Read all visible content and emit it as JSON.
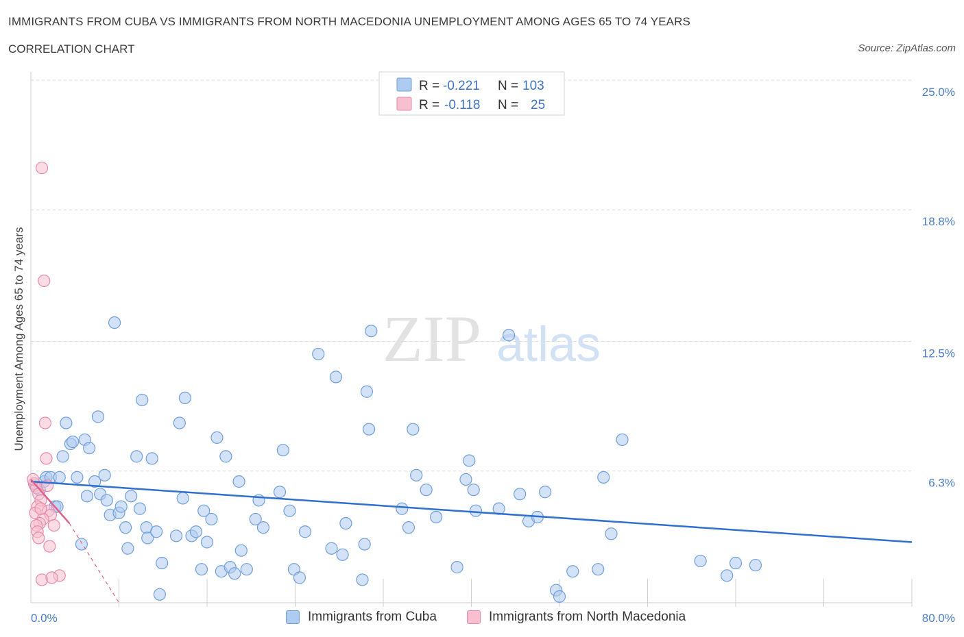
{
  "title": "IMMIGRANTS FROM CUBA VS IMMIGRANTS FROM NORTH MACEDONIA UNEMPLOYMENT AMONG AGES 65 TO 74 YEARS",
  "subtitle": "CORRELATION CHART",
  "source": "Source: ZipAtlas.com",
  "watermark": {
    "zip": "ZIP",
    "atlas": "atlas"
  },
  "colors": {
    "cuba_fill": "#aecbf0",
    "cuba_stroke": "#6f9fdc",
    "cuba_line": "#2f6fd0",
    "macedonia_fill": "#f7bfd0",
    "macedonia_stroke": "#e88aa8",
    "macedonia_line": "#e0608a",
    "accent_text": "#3f73c6",
    "grid": "#d9d9d9"
  },
  "legend": {
    "rows": [
      {
        "r_label": "R =",
        "r_value": "-0.221",
        "n_label": "N =",
        "n_value": "103"
      },
      {
        "r_label": "R =",
        "r_value": "-0.118",
        "n_label": "N =",
        "n_value": "25"
      }
    ]
  },
  "bottom_legend": {
    "cuba": "Immigrants from Cuba",
    "macedonia": "Immigrants from North Macedonia"
  },
  "chart_data": {
    "type": "scatter",
    "title": "IMMIGRANTS FROM CUBA VS IMMIGRANTS FROM NORTH MACEDONIA UNEMPLOYMENT AMONG AGES 65 TO 74 YEARS",
    "xlabel": "",
    "ylabel": "Unemployment Among Ages 65 to 74 years",
    "xlim": [
      0,
      80
    ],
    "ylim": [
      0,
      25
    ],
    "x_tick_labels": [
      "0.0%",
      "80.0%"
    ],
    "y_ticks": [
      6.3,
      12.5,
      18.8,
      25.0
    ],
    "y_tick_labels": [
      "6.3%",
      "12.5%",
      "18.8%",
      "25.0%"
    ],
    "legend_position": "top-center",
    "series": [
      {
        "name": "Immigrants from Cuba",
        "R": -0.221,
        "N": 103,
        "trend": {
          "x": [
            0,
            80
          ],
          "y": [
            5.8,
            2.9
          ],
          "style": "solid"
        },
        "points": [
          [
            0.4,
            5.6
          ],
          [
            0.8,
            5.4
          ],
          [
            1.2,
            5.8
          ],
          [
            1.4,
            6.0
          ],
          [
            1.8,
            6.0
          ],
          [
            2.2,
            4.6
          ],
          [
            2.4,
            4.6
          ],
          [
            2.6,
            6.0
          ],
          [
            2.9,
            7.0
          ],
          [
            3.2,
            8.6
          ],
          [
            3.6,
            7.6
          ],
          [
            3.8,
            7.7
          ],
          [
            4.2,
            6.0
          ],
          [
            4.6,
            2.8
          ],
          [
            4.9,
            7.8
          ],
          [
            5.1,
            5.1
          ],
          [
            5.3,
            7.4
          ],
          [
            5.8,
            5.8
          ],
          [
            6.1,
            8.9
          ],
          [
            6.3,
            5.2
          ],
          [
            6.7,
            6.1
          ],
          [
            6.9,
            4.9
          ],
          [
            7.2,
            4.2
          ],
          [
            7.6,
            13.4
          ],
          [
            8.0,
            4.3
          ],
          [
            8.2,
            4.6
          ],
          [
            8.6,
            3.6
          ],
          [
            8.8,
            2.6
          ],
          [
            9.1,
            5.1
          ],
          [
            9.6,
            7.0
          ],
          [
            9.9,
            4.5
          ],
          [
            10.1,
            9.7
          ],
          [
            10.5,
            3.6
          ],
          [
            10.6,
            3.1
          ],
          [
            11.0,
            6.9
          ],
          [
            11.4,
            3.4
          ],
          [
            11.7,
            0.4
          ],
          [
            11.9,
            1.9
          ],
          [
            13.2,
            3.2
          ],
          [
            13.5,
            8.6
          ],
          [
            13.8,
            5.0
          ],
          [
            14.0,
            9.8
          ],
          [
            14.6,
            3.2
          ],
          [
            15.0,
            3.4
          ],
          [
            15.5,
            1.6
          ],
          [
            15.7,
            4.4
          ],
          [
            16.0,
            2.9
          ],
          [
            16.4,
            4.0
          ],
          [
            16.9,
            7.9
          ],
          [
            17.3,
            1.5
          ],
          [
            17.7,
            7.0
          ],
          [
            18.1,
            1.7
          ],
          [
            18.5,
            1.4
          ],
          [
            18.9,
            5.8
          ],
          [
            19.1,
            2.5
          ],
          [
            19.6,
            1.6
          ],
          [
            20.4,
            4.0
          ],
          [
            20.7,
            4.9
          ],
          [
            21.1,
            3.6
          ],
          [
            22.6,
            5.3
          ],
          [
            22.9,
            7.3
          ],
          [
            23.5,
            4.4
          ],
          [
            23.9,
            1.6
          ],
          [
            24.4,
            1.2
          ],
          [
            24.9,
            3.4
          ],
          [
            26.1,
            11.9
          ],
          [
            27.3,
            2.6
          ],
          [
            27.7,
            10.8
          ],
          [
            28.3,
            2.3
          ],
          [
            28.6,
            3.8
          ],
          [
            30.3,
            2.8
          ],
          [
            30.5,
            10.1
          ],
          [
            30.7,
            8.3
          ],
          [
            30.9,
            13.0
          ],
          [
            30.1,
            1.1
          ],
          [
            33.7,
            4.5
          ],
          [
            34.3,
            3.6
          ],
          [
            34.7,
            8.3
          ],
          [
            35.0,
            6.1
          ],
          [
            35.9,
            5.4
          ],
          [
            36.8,
            4.1
          ],
          [
            38.7,
            1.7
          ],
          [
            39.8,
            6.8
          ],
          [
            39.5,
            5.9
          ],
          [
            40.2,
            5.4
          ],
          [
            40.4,
            4.4
          ],
          [
            42.5,
            4.5
          ],
          [
            43.4,
            12.8
          ],
          [
            44.4,
            5.2
          ],
          [
            45.2,
            3.9
          ],
          [
            46.0,
            4.1
          ],
          [
            46.7,
            5.3
          ],
          [
            47.7,
            0.6
          ],
          [
            48.0,
            0.3
          ],
          [
            49.2,
            1.5
          ],
          [
            51.5,
            1.6
          ],
          [
            52.0,
            6.0
          ],
          [
            53.7,
            7.8
          ],
          [
            52.7,
            3.3
          ],
          [
            60.8,
            2.0
          ],
          [
            63.2,
            1.3
          ],
          [
            64.0,
            1.9
          ],
          [
            65.8,
            1.8
          ]
        ]
      },
      {
        "name": "Immigrants from North Macedonia",
        "R": -0.118,
        "N": 25,
        "trend": {
          "x": [
            0,
            3.5
          ],
          "y": [
            5.9,
            3.8
          ],
          "style": "solid"
        },
        "trend_extension": {
          "x": [
            3.5,
            8.0
          ],
          "y": [
            3.8,
            0.0
          ],
          "style": "dashed"
        },
        "points": [
          [
            1.0,
            20.8
          ],
          [
            1.2,
            15.4
          ],
          [
            1.3,
            8.6
          ],
          [
            1.4,
            6.9
          ],
          [
            0.3,
            5.7
          ],
          [
            0.5,
            5.5
          ],
          [
            0.7,
            5.2
          ],
          [
            0.9,
            4.9
          ],
          [
            0.6,
            4.6
          ],
          [
            0.4,
            4.3
          ],
          [
            1.6,
            4.4
          ],
          [
            1.8,
            4.2
          ],
          [
            1.1,
            4.0
          ],
          [
            0.8,
            3.8
          ],
          [
            0.5,
            3.7
          ],
          [
            2.1,
            3.7
          ],
          [
            0.6,
            3.4
          ],
          [
            0.7,
            3.1
          ],
          [
            1.7,
            2.7
          ],
          [
            1.0,
            1.1
          ],
          [
            2.6,
            1.3
          ],
          [
            1.9,
            1.2
          ],
          [
            0.2,
            5.9
          ],
          [
            1.5,
            5.6
          ],
          [
            0.9,
            4.5
          ]
        ]
      }
    ]
  }
}
